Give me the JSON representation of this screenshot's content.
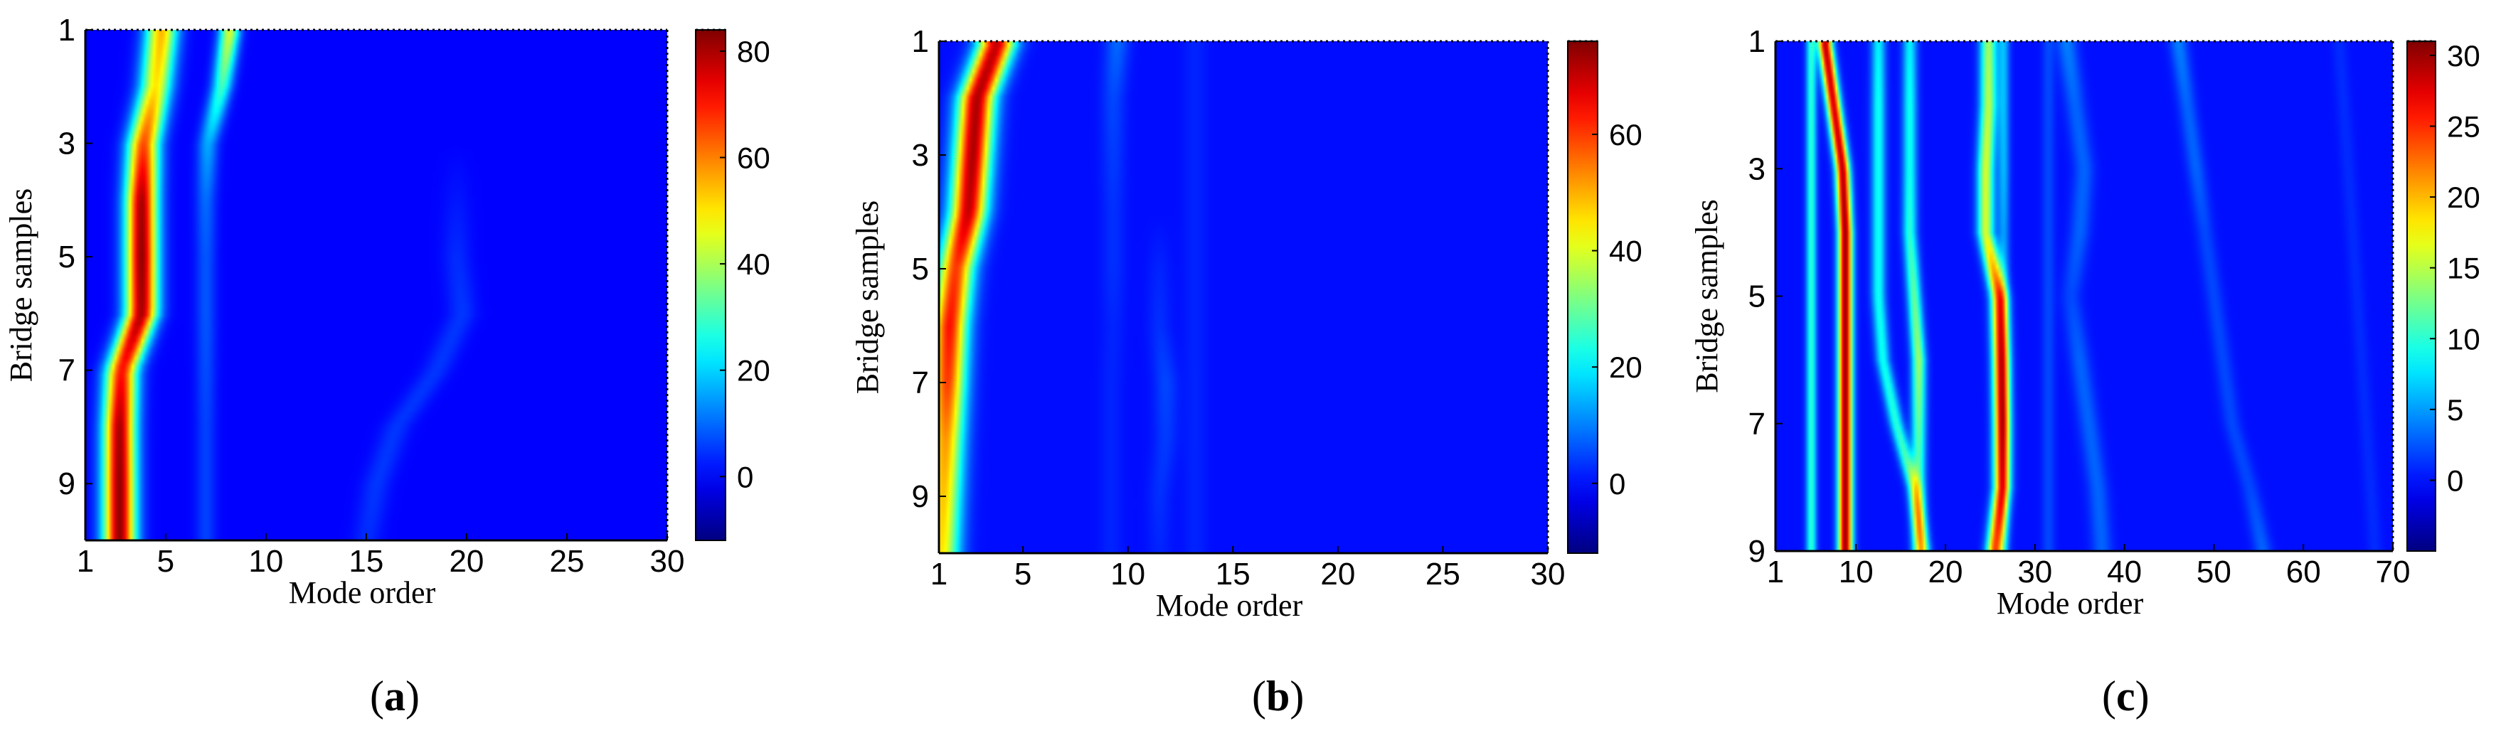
{
  "chart_data": [
    {
      "type": "heatmap",
      "panel_label": "a",
      "xlabel": "Mode order",
      "ylabel": "Bridge samples",
      "xlim": [
        1,
        30
      ],
      "ylim": [
        1,
        10
      ],
      "x_ticks": [
        1,
        5,
        10,
        15,
        20,
        25,
        30
      ],
      "y_ticks": [
        1,
        3,
        5,
        7,
        9
      ],
      "colorbar": {
        "min": -12,
        "max": 84,
        "ticks": [
          0,
          20,
          40,
          60,
          80
        ],
        "tick_labels": [
          "0",
          "20",
          "40",
          "60",
          "80"
        ]
      },
      "ridges": [
        {
          "x": [
            4.8,
            4.5,
            3.9,
            3.8,
            3.8,
            3.8,
            2.8,
            2.7,
            2.7,
            2.7
          ],
          "amp": [
            55,
            50,
            65,
            80,
            82,
            80,
            70,
            80,
            82,
            82
          ],
          "width": 0.55
        },
        {
          "x": [
            8.2,
            7.8,
            7.1,
            7.0,
            7.0,
            7.0,
            7.0,
            7.0,
            7.0,
            7.0
          ],
          "amp": [
            45,
            30,
            16,
            10,
            8,
            8,
            7,
            6,
            6,
            6
          ],
          "width": 0.35
        },
        {
          "x": [
            19.5,
            19.5,
            19.5,
            19.5,
            19.5,
            19.8,
            18.5,
            16.5,
            15.5,
            15.0
          ],
          "amp": [
            0,
            0,
            0,
            2,
            4,
            5,
            5,
            5,
            5,
            4
          ],
          "width": 0.5
        }
      ]
    },
    {
      "type": "heatmap",
      "panel_label": "b",
      "xlabel": "Mode order",
      "ylabel": "Bridge samples",
      "xlim": [
        1,
        30
      ],
      "ylim": [
        1,
        10
      ],
      "x_ticks": [
        1,
        5,
        10,
        15,
        20,
        25,
        30
      ],
      "y_ticks": [
        1,
        3,
        5,
        7,
        9
      ],
      "colorbar": {
        "min": -12,
        "max": 76,
        "ticks": [
          0,
          20,
          40,
          60
        ],
        "tick_labels": [
          "0",
          "20",
          "40",
          "60"
        ]
      },
      "ridges": [
        {
          "x": [
            3.8,
            2.8,
            2.6,
            2.4,
            1.8,
            1.5,
            1.4,
            1.3,
            1.2,
            1.1
          ],
          "amp": [
            70,
            72,
            72,
            70,
            60,
            64,
            60,
            52,
            48,
            45
          ],
          "width": 0.6
        },
        {
          "x": [
            9.5,
            9.3,
            9.3,
            9.3,
            9.3,
            9.3,
            9.2,
            9.2,
            9.2,
            9.2
          ],
          "amp": [
            8,
            5,
            4,
            3,
            3,
            2,
            2,
            2,
            2,
            2
          ],
          "width": 0.4
        },
        {
          "x": [
            11.5,
            11.5,
            11.5,
            11.5,
            11.5,
            11.5,
            11.8,
            11.8,
            11.5,
            11.5
          ],
          "amp": [
            0,
            0,
            0,
            0,
            2,
            3,
            5,
            4,
            3,
            2
          ],
          "width": 0.4
        },
        {
          "x": [
            13.2,
            13.2,
            13.2,
            13.2,
            13.2,
            13.2,
            13.2,
            13.2,
            13.2,
            13.2
          ],
          "amp": [
            2,
            2,
            2,
            2,
            2,
            2,
            2,
            2,
            2,
            2
          ],
          "width": 0.4
        }
      ]
    },
    {
      "type": "heatmap",
      "panel_label": "c",
      "xlabel": "Mode order",
      "ylabel": "Bridge samples",
      "xlim": [
        1,
        70
      ],
      "ylim": [
        1,
        9
      ],
      "x_ticks": [
        1,
        10,
        20,
        30,
        40,
        50,
        60,
        70
      ],
      "x_tick_labels": [
        "1",
        "10",
        "20",
        "30",
        "40",
        "50",
        "60",
        "70"
      ],
      "y_ticks": [
        1,
        3,
        5,
        7,
        9
      ],
      "colorbar": {
        "min": -5,
        "max": 31,
        "ticks": [
          0,
          5,
          10,
          15,
          20,
          25,
          30
        ],
        "tick_labels": [
          "0",
          "5",
          "10",
          "15",
          "20",
          "25",
          "30"
        ]
      },
      "ridges": [
        {
          "x": [
            6.5,
            7.5,
            8.5,
            8.8,
            8.8,
            8.8,
            8.8,
            8.8,
            8.8
          ],
          "amp": [
            29,
            28,
            29,
            30,
            30,
            30,
            30,
            30,
            30
          ],
          "width": 0.55
        },
        {
          "x": [
            5.0,
            5.0,
            5.0,
            5.0,
            5.0,
            5.0,
            5.0,
            5.0,
            5.0
          ],
          "amp": [
            10,
            10,
            10,
            10,
            10,
            10,
            10,
            10,
            10
          ],
          "width": 0.4
        },
        {
          "x": [
            12.5,
            12.5,
            12.5,
            12.5,
            12.5,
            13.0,
            14.5,
            16.5,
            17.5
          ],
          "amp": [
            8,
            9,
            9,
            9,
            9,
            9,
            10,
            12,
            13
          ],
          "width": 0.55
        },
        {
          "x": [
            16.0,
            16.0,
            16.0,
            16.0,
            16.5,
            17.0,
            17.0,
            17.0,
            17.0
          ],
          "amp": [
            8,
            9,
            9,
            10,
            12,
            14,
            12,
            10,
            10
          ],
          "width": 0.55
        },
        {
          "x": [
            24.8,
            24.8,
            24.5,
            24.5,
            26.0,
            26.2,
            26.3,
            26.3,
            25.5
          ],
          "amp": [
            14,
            15,
            16,
            16,
            24,
            26,
            26,
            24,
            24
          ],
          "width": 0.65
        },
        {
          "x": [
            26.5,
            26.5,
            26.5,
            26.5,
            26.5,
            26.5,
            26.5,
            26.5,
            26.5
          ],
          "amp": [
            6,
            6,
            6,
            5,
            5,
            4,
            4,
            4,
            4
          ],
          "width": 0.45
        },
        {
          "x": [
            33.5,
            34.5,
            35.5,
            35.0,
            34.0,
            35.0,
            36.0,
            37.0,
            37.5
          ],
          "amp": [
            4,
            3,
            3,
            3,
            2,
            3,
            3,
            3,
            3
          ],
          "width": 0.8
        },
        {
          "x": [
            46.0,
            47.0,
            48.0,
            49.0,
            50.0,
            51.0,
            52.0,
            54.0,
            55.5
          ],
          "amp": [
            4,
            3,
            3,
            2,
            2,
            2,
            2,
            2,
            3
          ],
          "width": 0.7
        },
        {
          "x": [
            31.5,
            31.5,
            31.5,
            31.5,
            31.5,
            31.5,
            31.5,
            31.5,
            31.5
          ],
          "amp": [
            2,
            2,
            2,
            2,
            2,
            2,
            2,
            2,
            2
          ],
          "width": 0.5
        },
        {
          "x": [
            64.0,
            64.5,
            65.0,
            65.5,
            66.0,
            66.5,
            67.0,
            67.5,
            68.0
          ],
          "amp": [
            1,
            1,
            1,
            1,
            1,
            1,
            1,
            1,
            1
          ],
          "width": 0.6
        }
      ]
    }
  ]
}
